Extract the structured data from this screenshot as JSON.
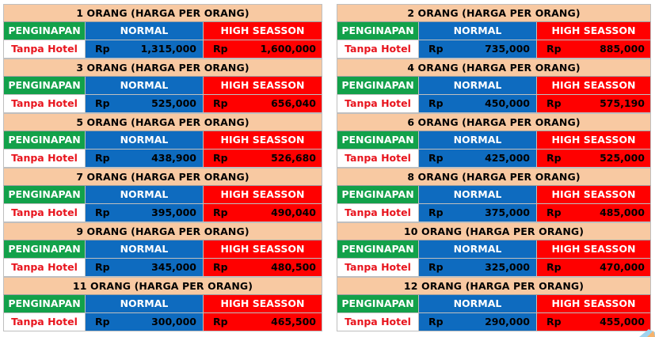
{
  "labels": {
    "lodging_header": "PENGINAPAN",
    "normal_header": "NORMAL",
    "high_header": "HIGH SEASSON",
    "currency": "Rp"
  },
  "left_tables": [
    {
      "title": "1 ORANG (HARGA PER ORANG)",
      "lodging": "Tanpa Hotel",
      "normal": "1,315,000",
      "high": "1,600,000"
    },
    {
      "title": "3 ORANG (HARGA PER ORANG)",
      "lodging": "Tanpa Hotel",
      "normal": "525,000",
      "high": "656,040"
    },
    {
      "title": "5 ORANG (HARGA PER ORANG)",
      "lodging": "Tanpa Hotel",
      "normal": "438,900",
      "high": "526,680"
    },
    {
      "title": "7 ORANG (HARGA PER ORANG)",
      "lodging": "Tanpa Hotel",
      "normal": "395,000",
      "high": "490,040"
    },
    {
      "title": "9 ORANG (HARGA PER ORANG)",
      "lodging": "Tanpa Hotel",
      "normal": "345,000",
      "high": "480,500"
    },
    {
      "title": "11 ORANG (HARGA PER ORANG)",
      "lodging": "Tanpa Hotel",
      "normal": "300,000",
      "high": "465,500"
    }
  ],
  "right_tables": [
    {
      "title": "2 ORANG (HARGA PER ORANG)",
      "lodging": "Tanpa Hotel",
      "normal": "735,000",
      "high": "885,000"
    },
    {
      "title": "4 ORANG (HARGA PER ORANG)",
      "lodging": "Tanpa Hotel",
      "normal": "450,000",
      "high": "575,190"
    },
    {
      "title": "6 ORANG (HARGA PER ORANG)",
      "lodging": "Tanpa Hotel",
      "normal": "425,000",
      "high": "525,000"
    },
    {
      "title": "8 ORANG (HARGA PER ORANG)",
      "lodging": "Tanpa Hotel",
      "normal": "375,000",
      "high": "485,000"
    },
    {
      "title": "10 ORANG (HARGA PER ORANG)",
      "lodging": "Tanpa Hotel",
      "normal": "325,000",
      "high": "470,000"
    },
    {
      "title": "12 ORANG (HARGA PER ORANG)",
      "lodging": "Tanpa Hotel",
      "normal": "290,000",
      "high": "455,000"
    }
  ]
}
